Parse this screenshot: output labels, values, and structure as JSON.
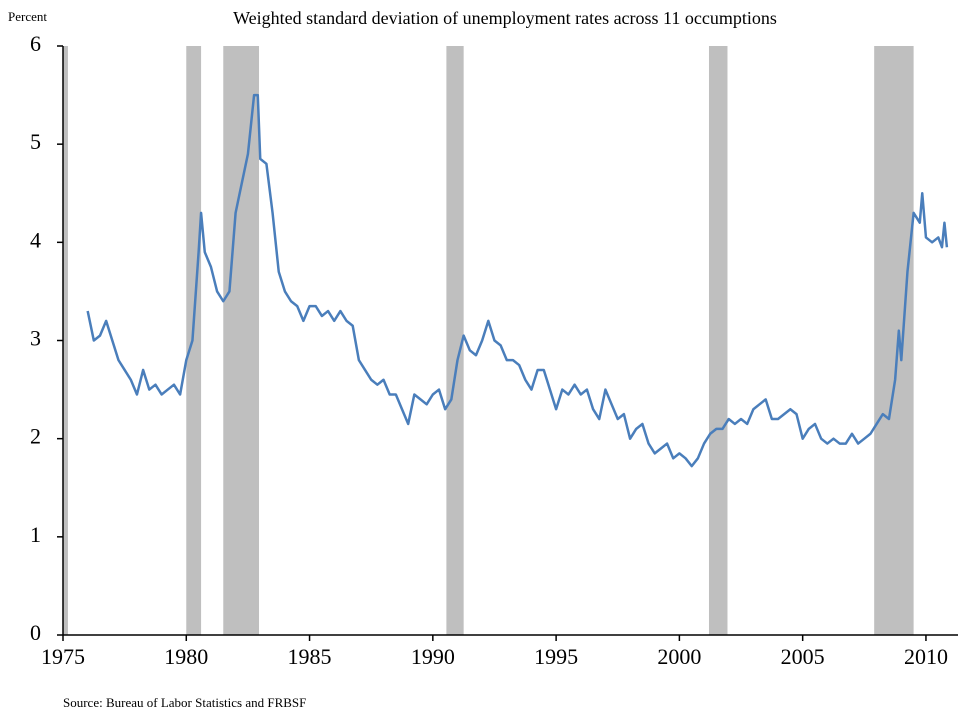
{
  "chart_data": {
    "type": "line",
    "title": "Weighted standard deviation of unemployment rates across 11 occumptions",
    "y_axis_label": "Percent",
    "source": "Source: Bureau of Labor Statistics and FRBSF",
    "x": [
      1976.0,
      1976.25,
      1976.5,
      1976.75,
      1977.0,
      1977.25,
      1977.5,
      1977.75,
      1978.0,
      1978.25,
      1978.5,
      1978.75,
      1979.0,
      1979.25,
      1979.5,
      1979.75,
      1980.0,
      1980.25,
      1980.5,
      1980.6,
      1980.75,
      1981.0,
      1981.25,
      1981.5,
      1981.75,
      1982.0,
      1982.25,
      1982.5,
      1982.75,
      1982.9,
      1983.0,
      1983.25,
      1983.5,
      1983.75,
      1984.0,
      1984.25,
      1984.5,
      1984.75,
      1985.0,
      1985.25,
      1985.5,
      1985.75,
      1986.0,
      1986.25,
      1986.5,
      1986.75,
      1987.0,
      1987.25,
      1987.5,
      1987.75,
      1988.0,
      1988.25,
      1988.5,
      1988.75,
      1989.0,
      1989.25,
      1989.5,
      1989.75,
      1990.0,
      1990.25,
      1990.5,
      1990.75,
      1991.0,
      1991.25,
      1991.5,
      1991.75,
      1992.0,
      1992.25,
      1992.5,
      1992.75,
      1993.0,
      1993.25,
      1993.5,
      1993.75,
      1994.0,
      1994.25,
      1994.5,
      1994.75,
      1995.0,
      1995.25,
      1995.5,
      1995.75,
      1996.0,
      1996.25,
      1996.5,
      1996.75,
      1997.0,
      1997.25,
      1997.5,
      1997.75,
      1998.0,
      1998.25,
      1998.5,
      1998.75,
      1999.0,
      1999.25,
      1999.5,
      1999.75,
      2000.0,
      2000.25,
      2000.5,
      2000.75,
      2001.0,
      2001.25,
      2001.5,
      2001.75,
      2002.0,
      2002.25,
      2002.5,
      2002.75,
      2003.0,
      2003.25,
      2003.5,
      2003.75,
      2004.0,
      2004.25,
      2004.5,
      2004.75,
      2005.0,
      2005.25,
      2005.5,
      2005.75,
      2006.0,
      2006.25,
      2006.5,
      2006.75,
      2007.0,
      2007.25,
      2007.5,
      2007.75,
      2008.0,
      2008.25,
      2008.5,
      2008.75,
      2008.9,
      2009.0,
      2009.25,
      2009.5,
      2009.75,
      2009.85,
      2010.0,
      2010.25,
      2010.5,
      2010.65,
      2010.75,
      2010.85
    ],
    "series": [
      {
        "name": "Weighted standard deviation",
        "color": "#4a7ebb",
        "values": [
          3.3,
          3.0,
          3.05,
          3.2,
          3.0,
          2.8,
          2.7,
          2.6,
          2.45,
          2.7,
          2.5,
          2.55,
          2.45,
          2.5,
          2.55,
          2.45,
          2.8,
          3.0,
          3.9,
          4.3,
          3.9,
          3.75,
          3.5,
          3.4,
          3.5,
          4.3,
          4.6,
          4.9,
          5.5,
          5.5,
          4.85,
          4.8,
          4.3,
          3.7,
          3.5,
          3.4,
          3.35,
          3.2,
          3.35,
          3.35,
          3.25,
          3.3,
          3.2,
          3.3,
          3.2,
          3.15,
          2.8,
          2.7,
          2.6,
          2.55,
          2.6,
          2.45,
          2.45,
          2.3,
          2.15,
          2.45,
          2.4,
          2.35,
          2.45,
          2.5,
          2.3,
          2.4,
          2.8,
          3.05,
          2.9,
          2.85,
          3.0,
          3.2,
          3.0,
          2.95,
          2.8,
          2.8,
          2.75,
          2.6,
          2.5,
          2.7,
          2.7,
          2.5,
          2.3,
          2.5,
          2.45,
          2.55,
          2.45,
          2.5,
          2.3,
          2.2,
          2.5,
          2.35,
          2.2,
          2.25,
          2.0,
          2.1,
          2.15,
          1.95,
          1.85,
          1.9,
          1.95,
          1.8,
          1.85,
          1.8,
          1.72,
          1.8,
          1.95,
          2.05,
          2.1,
          2.1,
          2.2,
          2.15,
          2.2,
          2.15,
          2.3,
          2.35,
          2.4,
          2.2,
          2.2,
          2.25,
          2.3,
          2.25,
          2.0,
          2.1,
          2.15,
          2.0,
          1.95,
          2.0,
          1.95,
          1.95,
          2.05,
          1.95,
          2.0,
          2.05,
          2.15,
          2.25,
          2.2,
          2.6,
          3.1,
          2.8,
          3.7,
          4.3,
          4.2,
          4.5,
          4.05,
          4.0,
          4.05,
          3.95,
          4.2,
          3.95
        ]
      }
    ],
    "shaded_regions": [
      {
        "start": 1975.0,
        "end": 1975.2
      },
      {
        "start": 1980.0,
        "end": 1980.6
      },
      {
        "start": 1981.5,
        "end": 1982.95
      },
      {
        "start": 1990.55,
        "end": 1991.25
      },
      {
        "start": 2001.2,
        "end": 2001.95
      },
      {
        "start": 2007.9,
        "end": 2009.5
      }
    ],
    "shade_color": "#bfbfbf",
    "xlim": [
      1975,
      2011.3
    ],
    "xticks": [
      1975,
      1980,
      1985,
      1990,
      1995,
      2000,
      2005,
      2010
    ],
    "ylim": [
      0,
      6
    ],
    "yticks": [
      0,
      1,
      2,
      3,
      4,
      5,
      6
    ]
  }
}
